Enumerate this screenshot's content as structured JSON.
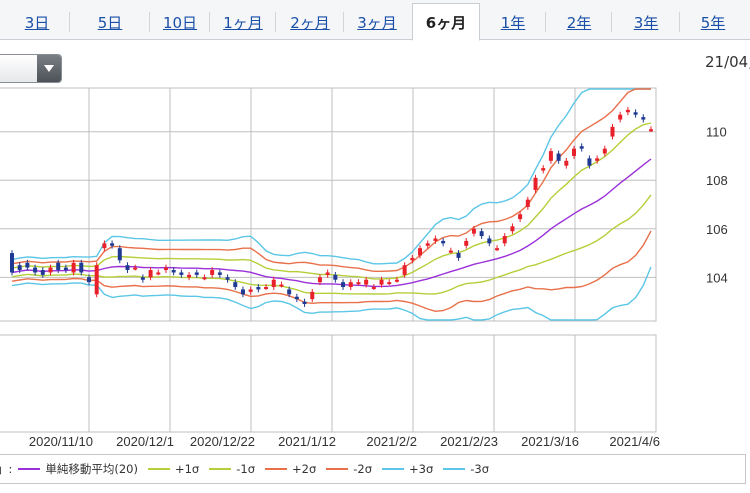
{
  "tabs": [
    {
      "label": "3日",
      "active": false
    },
    {
      "label": "5日",
      "active": false
    },
    {
      "label": "10日",
      "active": false
    },
    {
      "label": "1ヶ月",
      "active": false
    },
    {
      "label": "2ヶ月",
      "active": false
    },
    {
      "label": "3ヶ月",
      "active": false
    },
    {
      "label": "6ヶ月",
      "active": true
    },
    {
      "label": "1年",
      "active": false
    },
    {
      "label": "2年",
      "active": false
    },
    {
      "label": "3年",
      "active": false
    },
    {
      "label": "5年",
      "active": false
    }
  ],
  "dropdown": {
    "value": ""
  },
  "date_label": "21/04,",
  "legend": {
    "prefix": "」:",
    "items": [
      {
        "label": "単純移動平均(20)",
        "color": "#9b30d9"
      },
      {
        "label": "+1σ",
        "color": "#b5cf3a"
      },
      {
        "label": "-1σ",
        "color": "#b5cf3a"
      },
      {
        "label": "+2σ",
        "color": "#e8704a"
      },
      {
        "label": "-2σ",
        "color": "#e8704a"
      },
      {
        "label": "+3σ",
        "color": "#5bc6e6"
      },
      {
        "label": "-3σ",
        "color": "#5bc6e6"
      }
    ]
  },
  "chart_data": {
    "type": "candlestick",
    "y_ticks": [
      104,
      106,
      108,
      110
    ],
    "ylim": [
      102.2,
      111.8
    ],
    "x_ticks": [
      "2020/11/10",
      "2020/12/1",
      "2020/12/22",
      "2021/1/12",
      "2021/2/2",
      "2021/2/23",
      "2021/3/16",
      "2021/4/6"
    ],
    "grid": true,
    "colors": {
      "up": "#e8202a",
      "down": "#1f3a93",
      "grid": "#bfbfbf"
    },
    "candles": [
      [
        105.0,
        104.2
      ],
      [
        104.5,
        104.3
      ],
      [
        104.6,
        104.4
      ],
      [
        104.4,
        104.2
      ],
      [
        104.3,
        104.1
      ],
      [
        104.2,
        104.4
      ],
      [
        104.6,
        104.3
      ],
      [
        104.4,
        104.3
      ],
      [
        104.2,
        104.6
      ],
      [
        104.6,
        104.2
      ],
      [
        104.0,
        103.8
      ],
      [
        103.3,
        104.5
      ],
      [
        105.2,
        105.4
      ],
      [
        105.4,
        105.3
      ],
      [
        105.2,
        104.7
      ],
      [
        104.5,
        104.3
      ],
      [
        104.4,
        104.4
      ],
      [
        104.0,
        103.9
      ],
      [
        104.0,
        104.3
      ],
      [
        104.2,
        104.2
      ],
      [
        104.3,
        104.4
      ],
      [
        104.3,
        104.2
      ],
      [
        104.2,
        104.1
      ],
      [
        104.0,
        104.1
      ],
      [
        104.2,
        104.1
      ],
      [
        104.0,
        104.0
      ],
      [
        104.1,
        104.3
      ],
      [
        104.2,
        104.1
      ],
      [
        104.0,
        103.9
      ],
      [
        103.8,
        103.6
      ],
      [
        103.5,
        103.3
      ],
      [
        103.4,
        103.5
      ],
      [
        103.6,
        103.5
      ],
      [
        103.6,
        103.6
      ],
      [
        103.6,
        103.9
      ],
      [
        103.7,
        103.7
      ],
      [
        103.5,
        103.3
      ],
      [
        103.2,
        103.1
      ],
      [
        103.0,
        102.9
      ],
      [
        103.1,
        103.4
      ],
      [
        103.8,
        104.0
      ],
      [
        104.1,
        104.2
      ],
      [
        104.1,
        103.9
      ],
      [
        103.8,
        103.6
      ],
      [
        103.6,
        103.8
      ],
      [
        103.8,
        103.8
      ],
      [
        103.7,
        103.9
      ],
      [
        103.6,
        103.6
      ],
      [
        103.7,
        103.9
      ],
      [
        103.8,
        103.8
      ],
      [
        103.9,
        103.9
      ],
      [
        104.1,
        104.5
      ],
      [
        104.7,
        104.8
      ],
      [
        104.9,
        105.2
      ],
      [
        105.3,
        105.4
      ],
      [
        105.5,
        105.6
      ],
      [
        105.5,
        105.4
      ],
      [
        105.1,
        105.1
      ],
      [
        105.0,
        104.8
      ],
      [
        105.3,
        105.5
      ],
      [
        105.8,
        106.0
      ],
      [
        105.9,
        105.7
      ],
      [
        105.6,
        105.4
      ],
      [
        105.2,
        105.2
      ],
      [
        105.4,
        105.7
      ],
      [
        105.9,
        106.1
      ],
      [
        106.4,
        106.6
      ],
      [
        106.9,
        107.2
      ],
      [
        107.6,
        108.1
      ],
      [
        108.4,
        108.5
      ],
      [
        108.8,
        109.2
      ],
      [
        109.1,
        108.8
      ],
      [
        108.6,
        108.8
      ],
      [
        109.0,
        109.3
      ],
      [
        109.4,
        109.3
      ],
      [
        108.9,
        108.6
      ],
      [
        108.8,
        108.9
      ],
      [
        109.1,
        109.3
      ],
      [
        109.8,
        110.2
      ],
      [
        110.5,
        110.7
      ],
      [
        110.8,
        110.9
      ],
      [
        110.8,
        110.7
      ],
      [
        110.6,
        110.5
      ],
      [
        110.1,
        110.1
      ]
    ]
  }
}
